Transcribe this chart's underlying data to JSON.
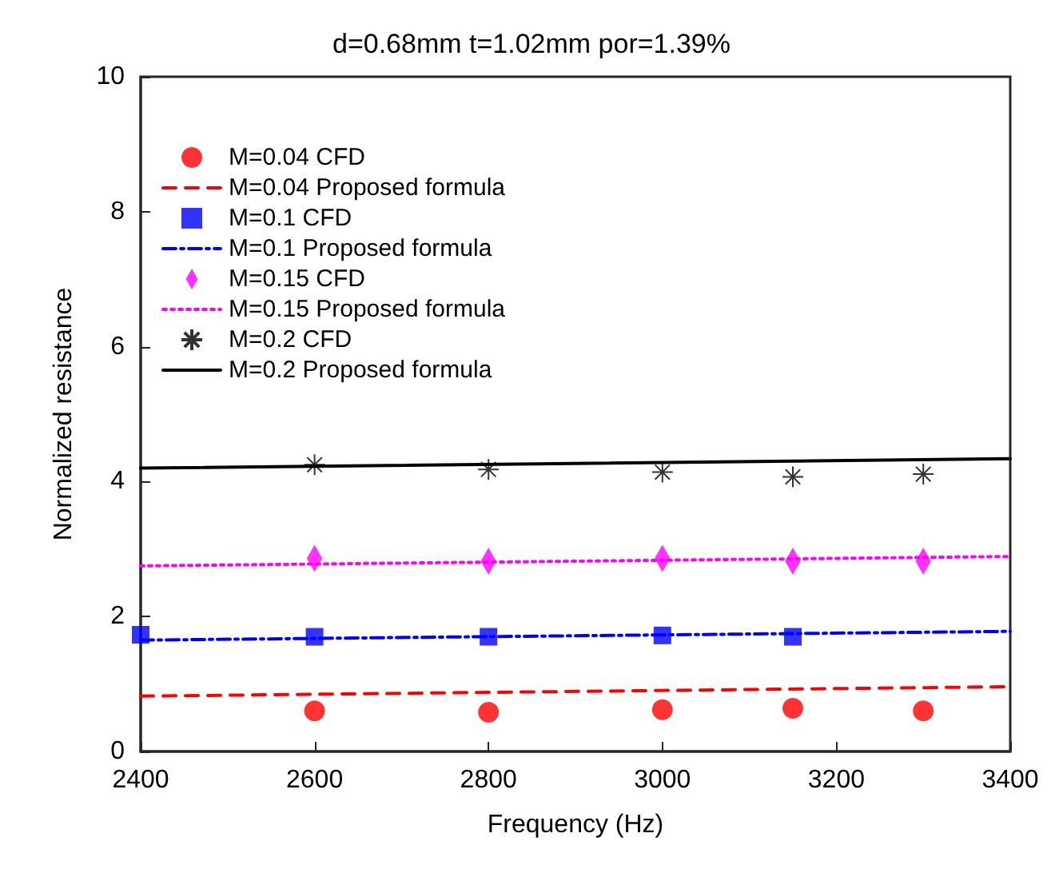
{
  "chart_data": {
    "type": "scatter",
    "title": "d=0.68mm t=1.02mm por=1.39%",
    "xlabel": "Frequency (Hz)",
    "ylabel": "Normalized resistance",
    "xlim": [
      2400,
      3400
    ],
    "xticks": [
      2400,
      2600,
      2800,
      3000,
      3200,
      3400
    ],
    "ylim": [
      0,
      10
    ],
    "yticks": [
      0,
      2,
      4,
      6,
      8,
      10
    ],
    "grid": false,
    "legend": "top left",
    "series": [
      {
        "name": "M=0.04 CFD",
        "type": "scatter",
        "marker": "circle",
        "color": "#ff0000",
        "x": [
          2600,
          2800,
          3000,
          3150,
          3300
        ],
        "values": [
          0.6,
          0.58,
          0.62,
          0.64,
          0.6
        ]
      },
      {
        "name": "M=0.04 Proposed formula",
        "type": "line",
        "line_style": "dashed",
        "color": "#ff0000",
        "x": [
          2400,
          3400
        ],
        "values": [
          0.82,
          0.96
        ]
      },
      {
        "name": "M=0.1 CFD",
        "type": "scatter",
        "marker": "square",
        "color": "#0000ff",
        "x": [
          2400,
          2600,
          2800,
          3000,
          3150
        ],
        "values": [
          1.73,
          1.7,
          1.7,
          1.72,
          1.7
        ]
      },
      {
        "name": "M=0.1 Proposed formula",
        "type": "line",
        "line_style": "dashdot",
        "color": "#0000ff",
        "x": [
          2400,
          3400
        ],
        "values": [
          1.65,
          1.78
        ]
      },
      {
        "name": "M=0.15 CFD",
        "type": "scatter",
        "marker": "diamond",
        "color": "#ff00ff",
        "x": [
          2600,
          2800,
          3000,
          3150,
          3300
        ],
        "values": [
          2.86,
          2.82,
          2.86,
          2.82,
          2.82
        ]
      },
      {
        "name": "M=0.15 Proposed formula",
        "type": "line",
        "line_style": "dotted",
        "color": "#ff00ff",
        "x": [
          2400,
          3400
        ],
        "values": [
          2.75,
          2.89
        ]
      },
      {
        "name": "M=0.2 CFD",
        "type": "scatter",
        "marker": "cross",
        "color": "#000000",
        "x": [
          2600,
          2800,
          3000,
          3150,
          3300
        ],
        "values": [
          4.25,
          4.18,
          4.14,
          4.07,
          4.11
        ]
      },
      {
        "name": "M=0.2 Proposed formula",
        "type": "line",
        "line_style": "solid",
        "color": "#000000",
        "x": [
          2400,
          3400
        ],
        "values": [
          4.2,
          4.34
        ]
      }
    ]
  }
}
